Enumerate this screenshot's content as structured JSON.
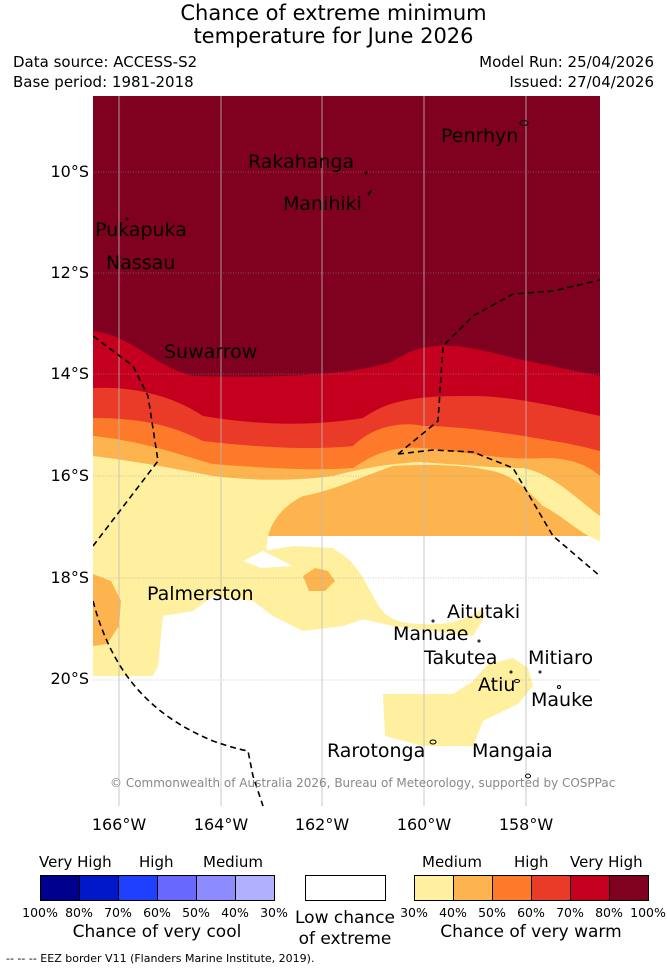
{
  "title": {
    "line1": "Chance of extreme minimum",
    "line2": "temperature for June 2026"
  },
  "meta": {
    "data_source": "Data source: ACCESS-S2",
    "base_period": "Base period: 1981-2018",
    "model_run": "Model Run: 25/04/2026",
    "issued": "Issued: 27/04/2026"
  },
  "axes": {
    "lat_labels": [
      "10°S",
      "12°S",
      "14°S",
      "16°S",
      "18°S",
      "20°S"
    ],
    "lon_labels": [
      "166°W",
      "164°W",
      "162°W",
      "160°W",
      "158°W"
    ]
  },
  "places": {
    "penrhyn": "Penrhyn",
    "rakahanga": "Rakahanga",
    "manihiki": "Manihiki",
    "pukapuka": "Pukapuka",
    "nassau": "Nassau",
    "suwarrow": "Suwarrow",
    "palmerston": "Palmerston",
    "aitutaki": "Aitutaki",
    "manuae": "Manuae",
    "takutea": "Takutea",
    "mitiaro": "Mitiaro",
    "atiu": "Atiu",
    "mauke": "Mauke",
    "rarotonga": "Rarotonga",
    "mangaia": "Mangaia"
  },
  "copyright": "© Commonwealth of Australia 2026, Bureau of Meteorology, supported by COSPPac",
  "legend": {
    "cool": {
      "heads": [
        "Very High",
        "High",
        "Medium"
      ],
      "colors": [
        "#00008f",
        "#0018c8",
        "#2040ff",
        "#6868ff",
        "#8c8cff",
        "#b0b0ff"
      ],
      "ticks": [
        "100%",
        "80%",
        "70%",
        "60%",
        "50%",
        "40%",
        "30%"
      ],
      "caption": "Chance of very cool"
    },
    "neutral": {
      "color": "#ffffff",
      "caption_line1": "Low chance",
      "caption_line2": "of extreme"
    },
    "warm": {
      "heads": [
        "Medium",
        "High",
        "Very High"
      ],
      "colors": [
        "#fff0a0",
        "#fdb44e",
        "#fc7a2a",
        "#ea3a28",
        "#c4001e",
        "#800020"
      ],
      "ticks": [
        "30%",
        "40%",
        "50%",
        "60%",
        "70%",
        "80%",
        "100%"
      ],
      "caption": "Chance of very warm"
    }
  },
  "footer": "--  --  -- EEZ border V11 (Flanders Marine Institute, 2019)."
}
